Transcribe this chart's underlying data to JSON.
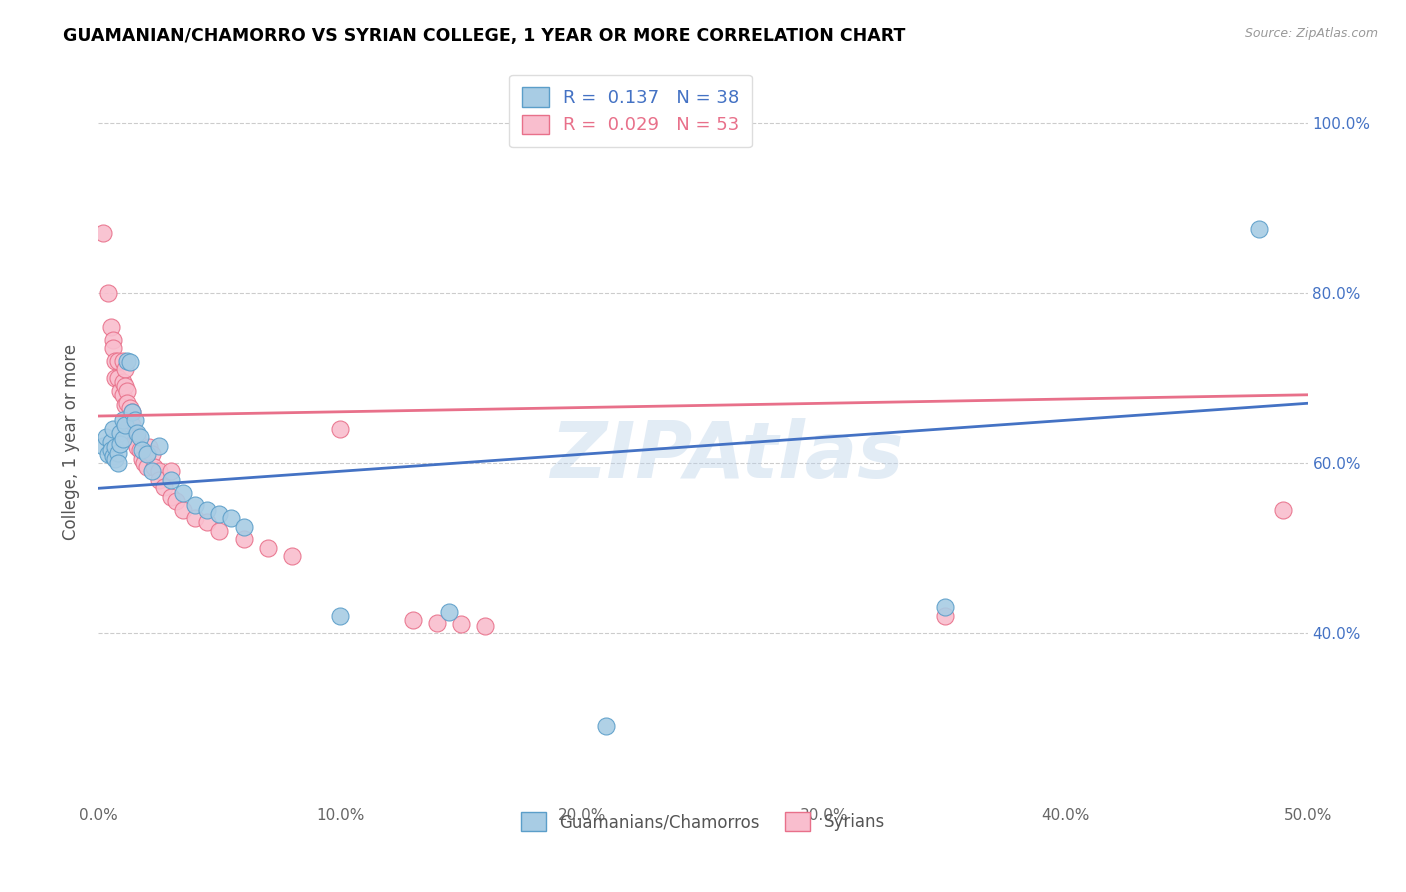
{
  "title": "GUAMANIAN/CHAMORRO VS SYRIAN COLLEGE, 1 YEAR OR MORE CORRELATION CHART",
  "source": "Source: ZipAtlas.com",
  "ylabel": "College, 1 year or more",
  "x_min": 0.0,
  "x_max": 0.5,
  "y_min": 0.2,
  "y_max": 1.05,
  "x_ticks": [
    0.0,
    0.1,
    0.2,
    0.3,
    0.4,
    0.5
  ],
  "x_tick_labels": [
    "0.0%",
    "10.0%",
    "20.0%",
    "30.0%",
    "40.0%",
    "50.0%"
  ],
  "y_ticks": [
    0.4,
    0.6,
    0.8,
    1.0
  ],
  "y_tick_labels": [
    "40.0%",
    "60.0%",
    "80.0%",
    "100.0%"
  ],
  "legend_label_blue": "Guamanians/Chamorros",
  "legend_label_pink": "Syrians",
  "R_blue": "0.137",
  "N_blue": "38",
  "R_pink": "0.029",
  "N_pink": "53",
  "blue_color": "#a8cce4",
  "pink_color": "#f9bece",
  "blue_edge_color": "#5b9ec9",
  "pink_edge_color": "#e8708a",
  "blue_line_color": "#4472c4",
  "pink_line_color": "#e8708a",
  "watermark": "ZIPAtlas",
  "blue_scatter": [
    [
      0.002,
      0.62
    ],
    [
      0.003,
      0.63
    ],
    [
      0.004,
      0.61
    ],
    [
      0.005,
      0.625
    ],
    [
      0.005,
      0.615
    ],
    [
      0.006,
      0.64
    ],
    [
      0.006,
      0.608
    ],
    [
      0.007,
      0.618
    ],
    [
      0.007,
      0.605
    ],
    [
      0.008,
      0.612
    ],
    [
      0.008,
      0.6
    ],
    [
      0.009,
      0.635
    ],
    [
      0.009,
      0.622
    ],
    [
      0.01,
      0.65
    ],
    [
      0.01,
      0.628
    ],
    [
      0.011,
      0.645
    ],
    [
      0.012,
      0.72
    ],
    [
      0.013,
      0.718
    ],
    [
      0.014,
      0.66
    ],
    [
      0.015,
      0.65
    ],
    [
      0.016,
      0.635
    ],
    [
      0.017,
      0.63
    ],
    [
      0.018,
      0.615
    ],
    [
      0.02,
      0.61
    ],
    [
      0.022,
      0.59
    ],
    [
      0.025,
      0.62
    ],
    [
      0.03,
      0.58
    ],
    [
      0.035,
      0.565
    ],
    [
      0.04,
      0.55
    ],
    [
      0.045,
      0.545
    ],
    [
      0.05,
      0.54
    ],
    [
      0.055,
      0.535
    ],
    [
      0.06,
      0.525
    ],
    [
      0.1,
      0.42
    ],
    [
      0.145,
      0.425
    ],
    [
      0.21,
      0.29
    ],
    [
      0.35,
      0.43
    ],
    [
      0.48,
      0.875
    ]
  ],
  "pink_scatter": [
    [
      0.002,
      0.87
    ],
    [
      0.004,
      0.8
    ],
    [
      0.005,
      0.76
    ],
    [
      0.006,
      0.745
    ],
    [
      0.006,
      0.735
    ],
    [
      0.007,
      0.72
    ],
    [
      0.007,
      0.7
    ],
    [
      0.008,
      0.7
    ],
    [
      0.008,
      0.72
    ],
    [
      0.009,
      0.685
    ],
    [
      0.01,
      0.72
    ],
    [
      0.01,
      0.695
    ],
    [
      0.01,
      0.68
    ],
    [
      0.011,
      0.71
    ],
    [
      0.011,
      0.69
    ],
    [
      0.011,
      0.668
    ],
    [
      0.012,
      0.685
    ],
    [
      0.012,
      0.67
    ],
    [
      0.013,
      0.665
    ],
    [
      0.013,
      0.648
    ],
    [
      0.014,
      0.66
    ],
    [
      0.014,
      0.645
    ],
    [
      0.015,
      0.635
    ],
    [
      0.015,
      0.625
    ],
    [
      0.016,
      0.63
    ],
    [
      0.016,
      0.618
    ],
    [
      0.017,
      0.615
    ],
    [
      0.018,
      0.605
    ],
    [
      0.019,
      0.6
    ],
    [
      0.02,
      0.595
    ],
    [
      0.021,
      0.618
    ],
    [
      0.022,
      0.61
    ],
    [
      0.023,
      0.595
    ],
    [
      0.025,
      0.59
    ],
    [
      0.025,
      0.58
    ],
    [
      0.027,
      0.572
    ],
    [
      0.03,
      0.59
    ],
    [
      0.03,
      0.56
    ],
    [
      0.032,
      0.555
    ],
    [
      0.035,
      0.545
    ],
    [
      0.04,
      0.535
    ],
    [
      0.045,
      0.53
    ],
    [
      0.05,
      0.52
    ],
    [
      0.06,
      0.51
    ],
    [
      0.07,
      0.5
    ],
    [
      0.08,
      0.49
    ],
    [
      0.1,
      0.64
    ],
    [
      0.13,
      0.415
    ],
    [
      0.14,
      0.412
    ],
    [
      0.15,
      0.41
    ],
    [
      0.16,
      0.408
    ],
    [
      0.35,
      0.42
    ],
    [
      0.49,
      0.545
    ]
  ]
}
